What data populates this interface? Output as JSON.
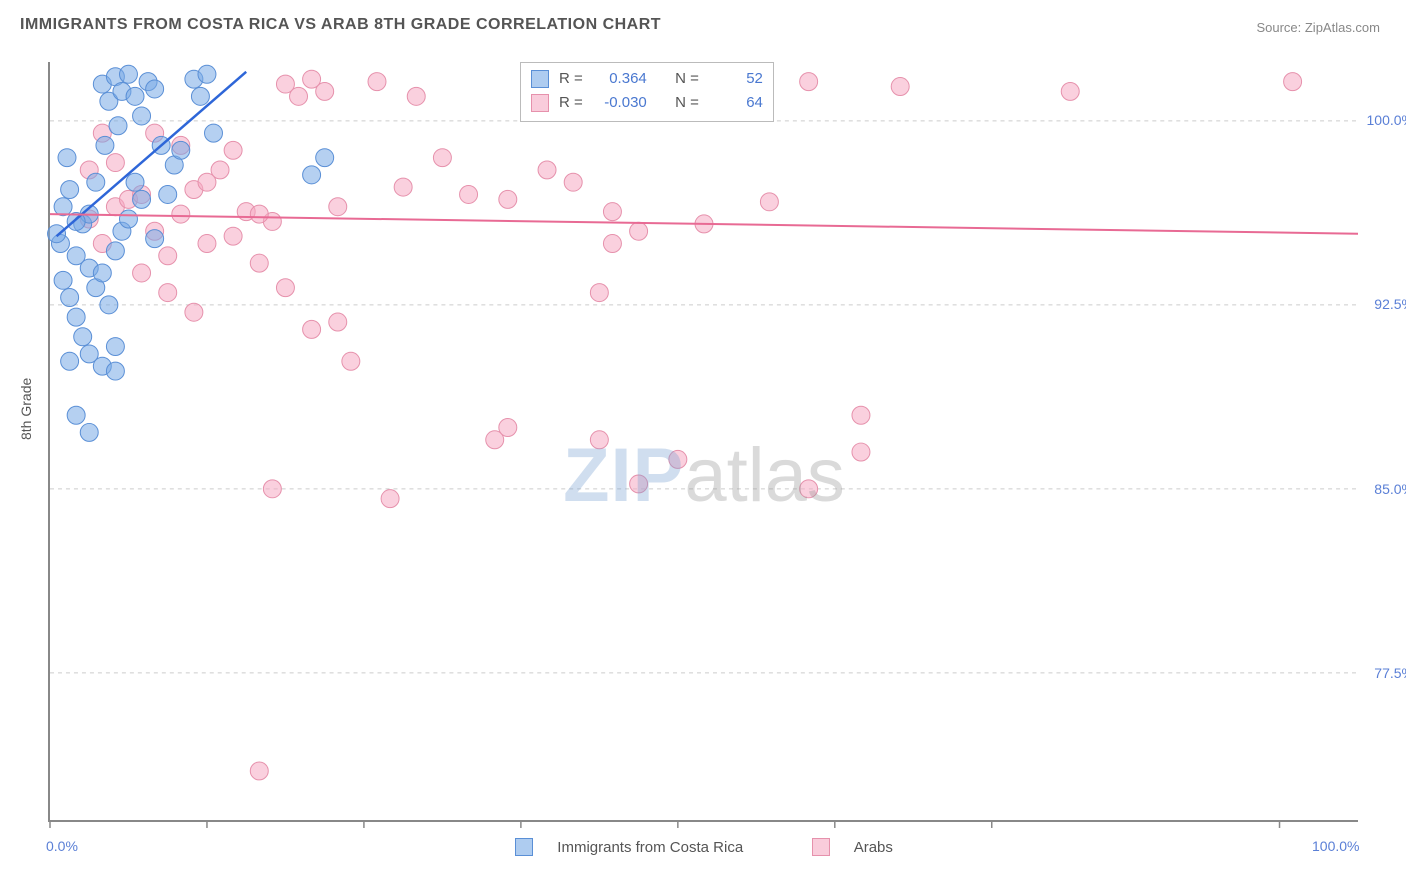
{
  "title": "IMMIGRANTS FROM COSTA RICA VS ARAB 8TH GRADE CORRELATION CHART",
  "source_label": "Source: ",
  "source_name": "ZipAtlas.com",
  "yaxis_title": "8th Grade",
  "watermark_a": "ZIP",
  "watermark_b": "atlas",
  "chart": {
    "type": "scatter",
    "xlim": [
      0,
      100
    ],
    "ylim": [
      71.5,
      102.4
    ],
    "y_ticks": [
      77.5,
      85.0,
      92.5,
      100.0
    ],
    "y_tick_labels": [
      "77.5%",
      "85.0%",
      "92.5%",
      "100.0%"
    ],
    "x_ticks": [
      0,
      12,
      24,
      36,
      48,
      60,
      72,
      94
    ],
    "x_tick_labels": {
      "0": "0.0%",
      "100": "100.0%"
    },
    "background_color": "#ffffff",
    "grid_color": "#cccccc",
    "axis_color": "#888888",
    "marker_radius": 9,
    "series": [
      {
        "key": "costa_rica",
        "label": "Immigrants from Costa Rica",
        "fill": "rgba(120,170,230,0.55)",
        "stroke": "#5a8fd6",
        "R": "0.364",
        "N": "52",
        "trend": {
          "x1": 0.5,
          "y1": 95.3,
          "x2": 15,
          "y2": 102.0,
          "color": "#2e66d8",
          "width": 2.5
        },
        "points": [
          [
            1,
            96.5
          ],
          [
            1.5,
            97.2
          ],
          [
            0.8,
            95.0
          ],
          [
            2,
            94.5
          ],
          [
            2.5,
            95.8
          ],
          [
            3,
            96.2
          ],
          [
            3.5,
            97.5
          ],
          [
            4,
            101.5
          ],
          [
            4.5,
            100.8
          ],
          [
            5,
            101.8
          ],
          [
            5.5,
            101.2
          ],
          [
            6,
            101.9
          ],
          [
            6.5,
            101.0
          ],
          [
            7,
            100.2
          ],
          [
            7.5,
            101.6
          ],
          [
            8,
            101.3
          ],
          [
            8.5,
            99.0
          ],
          [
            11,
            101.7
          ],
          [
            11.5,
            101.0
          ],
          [
            12,
            101.9
          ],
          [
            12.5,
            99.5
          ],
          [
            1,
            93.5
          ],
          [
            1.5,
            92.8
          ],
          [
            2,
            92.0
          ],
          [
            2.5,
            91.2
          ],
          [
            0.5,
            95.4
          ],
          [
            2,
            95.9
          ],
          [
            3,
            94.0
          ],
          [
            3.5,
            93.2
          ],
          [
            4,
            93.8
          ],
          [
            4.5,
            92.5
          ],
          [
            5,
            94.7
          ],
          [
            5.5,
            95.5
          ],
          [
            6,
            96.0
          ],
          [
            7,
            96.8
          ],
          [
            8,
            95.2
          ],
          [
            9,
            97.0
          ],
          [
            9.5,
            98.2
          ],
          [
            10,
            98.8
          ],
          [
            3,
            90.5
          ],
          [
            4,
            90.0
          ],
          [
            5,
            90.8
          ],
          [
            1.5,
            90.2
          ],
          [
            2,
            88.0
          ],
          [
            3,
            87.3
          ],
          [
            5,
            89.8
          ],
          [
            1.3,
            98.5
          ],
          [
            4.2,
            99.0
          ],
          [
            5.2,
            99.8
          ],
          [
            6.5,
            97.5
          ],
          [
            20,
            97.8
          ],
          [
            21,
            98.5
          ]
        ]
      },
      {
        "key": "arabs",
        "label": "Arabs",
        "fill": "rgba(245,170,195,0.55)",
        "stroke": "#e691ac",
        "R": "-0.030",
        "N": "64",
        "trend": {
          "x1": 0,
          "y1": 96.2,
          "x2": 100,
          "y2": 95.4,
          "color": "#e86a94",
          "width": 2
        },
        "points": [
          [
            3,
            96.0
          ],
          [
            4,
            95.0
          ],
          [
            5,
            96.5
          ],
          [
            6,
            96.8
          ],
          [
            7,
            97.0
          ],
          [
            8,
            95.5
          ],
          [
            9,
            94.5
          ],
          [
            10,
            96.2
          ],
          [
            11,
            97.2
          ],
          [
            12,
            95.0
          ],
          [
            13,
            98.0
          ],
          [
            14,
            98.8
          ],
          [
            15,
            96.3
          ],
          [
            16,
            94.2
          ],
          [
            17,
            95.9
          ],
          [
            8,
            99.5
          ],
          [
            10,
            99.0
          ],
          [
            12,
            97.5
          ],
          [
            14,
            95.3
          ],
          [
            16,
            96.2
          ],
          [
            18,
            101.5
          ],
          [
            19,
            101.0
          ],
          [
            20,
            101.7
          ],
          [
            21,
            101.2
          ],
          [
            22,
            96.5
          ],
          [
            25,
            101.6
          ],
          [
            27,
            97.3
          ],
          [
            28,
            101.0
          ],
          [
            30,
            98.5
          ],
          [
            32,
            97.0
          ],
          [
            35,
            96.8
          ],
          [
            38,
            98.0
          ],
          [
            40,
            97.5
          ],
          [
            43,
            96.3
          ],
          [
            45,
            95.5
          ],
          [
            58,
            101.6
          ],
          [
            62,
            88.0
          ],
          [
            65,
            101.4
          ],
          [
            78,
            101.2
          ],
          [
            95,
            101.6
          ],
          [
            42,
            93.0
          ],
          [
            18,
            93.2
          ],
          [
            20,
            91.5
          ],
          [
            22,
            91.8
          ],
          [
            23,
            90.2
          ],
          [
            17,
            85.0
          ],
          [
            26,
            84.6
          ],
          [
            34,
            87.0
          ],
          [
            35,
            87.5
          ],
          [
            42,
            87.0
          ],
          [
            45,
            85.2
          ],
          [
            48,
            86.2
          ],
          [
            58,
            85.0
          ],
          [
            62,
            86.5
          ],
          [
            16,
            73.5
          ],
          [
            7,
            93.8
          ],
          [
            9,
            93.0
          ],
          [
            11,
            92.2
          ],
          [
            5,
            98.3
          ],
          [
            43,
            95.0
          ],
          [
            50,
            95.8
          ],
          [
            55,
            96.7
          ],
          [
            3,
            98.0
          ],
          [
            4,
            99.5
          ]
        ]
      }
    ]
  },
  "stats_box": {
    "r_label": "R =",
    "n_label": "N ="
  },
  "legend": {
    "item1": "Immigrants from Costa Rica",
    "item2": "Arabs"
  }
}
